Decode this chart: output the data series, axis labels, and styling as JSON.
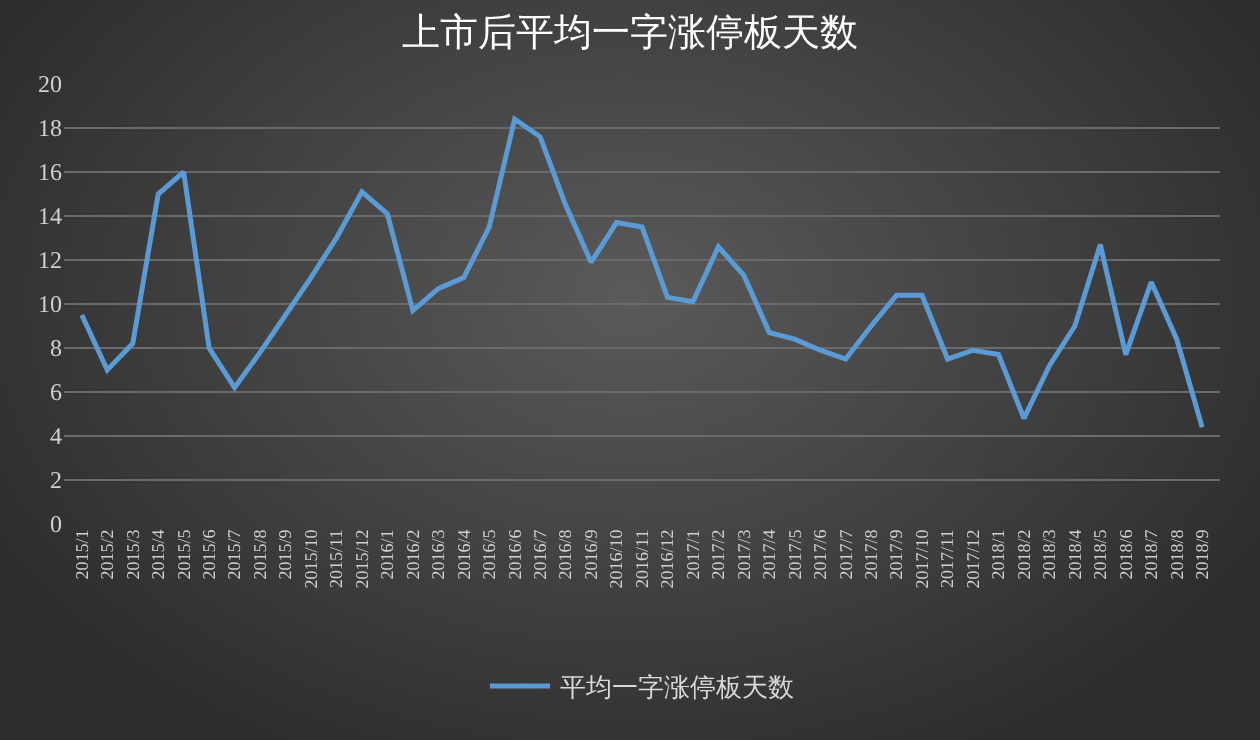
{
  "chart_data": {
    "type": "line",
    "title": "上市后平均一字涨停板天数",
    "categories": [
      "2015/1",
      "2015/2",
      "2015/3",
      "2015/4",
      "2015/5",
      "2015/6",
      "2015/7",
      "2015/8",
      "2015/9",
      "2015/10",
      "2015/11",
      "2015/12",
      "2016/1",
      "2016/2",
      "2016/3",
      "2016/4",
      "2016/5",
      "2016/6",
      "2016/7",
      "2016/8",
      "2016/9",
      "2016/10",
      "2016/11",
      "2016/12",
      "2017/1",
      "2017/2",
      "2017/3",
      "2017/4",
      "2017/5",
      "2017/6",
      "2017/7",
      "2017/8",
      "2017/9",
      "2017/10",
      "2017/11",
      "2017/12",
      "2018/1",
      "2018/2",
      "2018/3",
      "2018/4",
      "2018/5",
      "2018/6",
      "2018/7",
      "2018/8",
      "2018/9"
    ],
    "series": [
      {
        "name": "平均一字涨停板天数",
        "color": "#5b9bd5",
        "values": [
          9.5,
          7.0,
          8.2,
          15.0,
          16.0,
          8.0,
          6.2,
          7.8,
          9.5,
          11.2,
          13.0,
          15.1,
          14.1,
          9.7,
          10.7,
          11.2,
          13.5,
          18.4,
          17.6,
          14.5,
          11.9,
          13.7,
          13.5,
          10.3,
          10.1,
          12.6,
          11.3,
          8.7,
          8.4,
          7.9,
          7.5,
          9.0,
          10.4,
          10.4,
          7.5,
          7.9,
          7.7,
          4.8,
          7.2,
          9.0,
          12.7,
          7.7,
          11.0,
          8.4,
          4.4
        ]
      }
    ],
    "ylim": [
      0,
      20
    ],
    "yticks": [
      0,
      2,
      4,
      6,
      8,
      10,
      12,
      14,
      16,
      18,
      20
    ],
    "grid": "y",
    "legend": "bottom",
    "marker": "none",
    "line_style": "solid"
  }
}
